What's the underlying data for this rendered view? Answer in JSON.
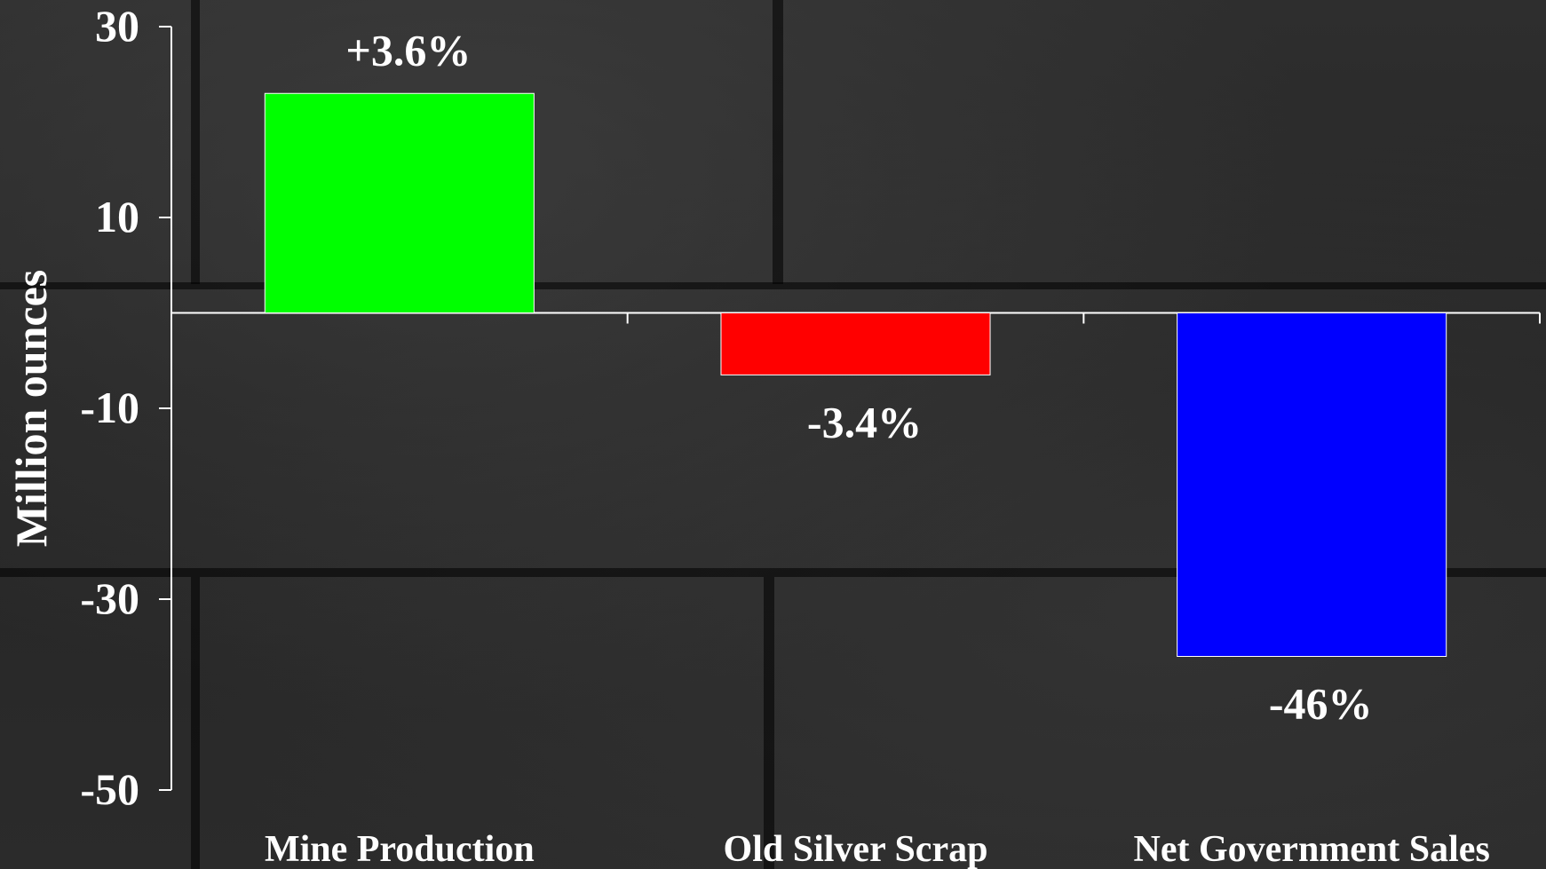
{
  "chart_data": {
    "type": "bar",
    "categories": [
      "Mine Production",
      "Old Silver Scrap",
      "Net Government Sales"
    ],
    "values": [
      23,
      -6.5,
      -36
    ],
    "data_labels": [
      "+3.6%",
      "-3.4%",
      "-46%"
    ],
    "colors": [
      "#00ff00",
      "#ff0000",
      "#0000ff"
    ],
    "ylabel": "Million ounces",
    "xlabel": "",
    "title": "",
    "ylim": [
      -50,
      30
    ],
    "yticks": [
      30,
      10,
      -10,
      -30,
      -50
    ],
    "ytick_labels": [
      "30",
      "10",
      "-10",
      "-30",
      "-50"
    ],
    "grid": false,
    "legend": "none",
    "axis_color": "#ffffff"
  }
}
